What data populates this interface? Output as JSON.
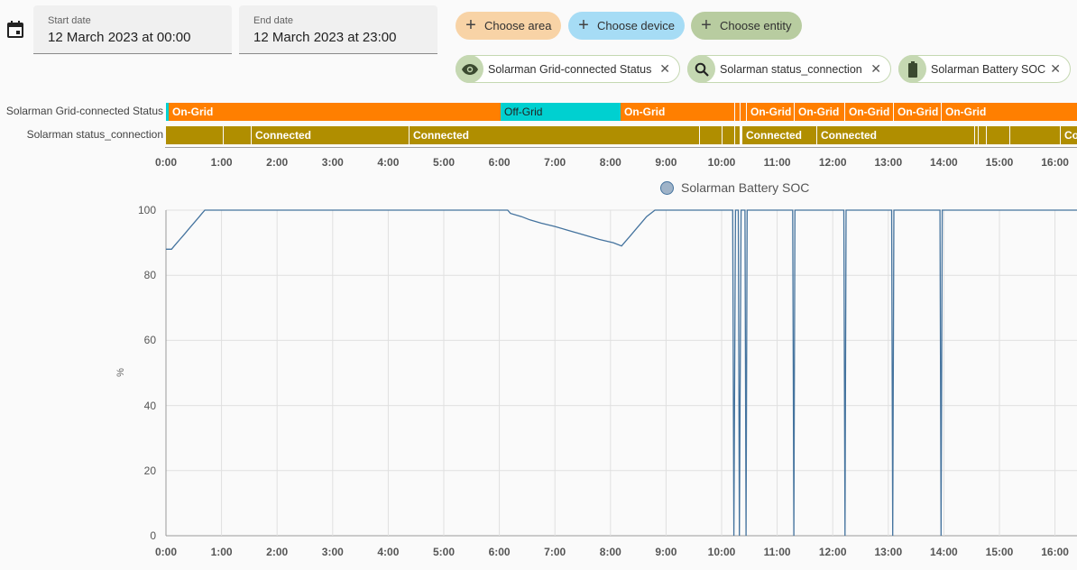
{
  "start_date": {
    "label": "Start date",
    "value": "12 March 2023 at 00:00"
  },
  "end_date": {
    "label": "End date",
    "value": "12 March 2023 at 23:00"
  },
  "pickers": {
    "area": "Choose area",
    "device": "Choose device",
    "entity": "Choose entity"
  },
  "selected": [
    {
      "label": "Solarman Grid-connected Status",
      "icon": "eye-icon"
    },
    {
      "label": "Solarman status_connection",
      "icon": "magnify-icon"
    },
    {
      "label": "Solarman Battery SOC",
      "icon": "battery-icon"
    }
  ],
  "timeline": {
    "rows": [
      {
        "label": "Solarman Grid-connected Status"
      },
      {
        "label": "Solarman status_connection"
      }
    ],
    "text": {
      "on_grid": "On-Grid",
      "off_grid": "Off-Grid",
      "connected": "Connected",
      "connected_cut": "Co"
    },
    "ticks": [
      "0:00",
      "1:00",
      "2:00",
      "3:00",
      "4:00",
      "5:00",
      "6:00",
      "7:00",
      "8:00",
      "9:00",
      "10:00",
      "11:00",
      "12:00",
      "13:00",
      "14:00",
      "15:00",
      "16:00"
    ]
  },
  "chart_data": {
    "type": "line",
    "title": "",
    "legend": {
      "label": "Solarman Battery SOC",
      "position": "top"
    },
    "ylabel": "%",
    "ylim": [
      0,
      100
    ],
    "yticks": [
      "0",
      "20",
      "40",
      "60",
      "80",
      "100"
    ],
    "xticks": [
      "0:00",
      "1:00",
      "2:00",
      "3:00",
      "4:00",
      "5:00",
      "6:00",
      "7:00",
      "8:00",
      "9:00",
      "10:00",
      "11:00",
      "12:00",
      "13:00",
      "14:00",
      "15:00",
      "16:00"
    ],
    "series": [
      {
        "name": "Solarman Battery SOC",
        "color": "#44739e",
        "points_hours_pct": [
          [
            0,
            88
          ],
          [
            0.1,
            88
          ],
          [
            0.15,
            89
          ],
          [
            0.2,
            90
          ],
          [
            0.25,
            91
          ],
          [
            0.3,
            92
          ],
          [
            0.35,
            93
          ],
          [
            0.4,
            94
          ],
          [
            0.45,
            95
          ],
          [
            0.5,
            96
          ],
          [
            0.55,
            97
          ],
          [
            0.6,
            98
          ],
          [
            0.65,
            99
          ],
          [
            0.7,
            100
          ],
          [
            6.15,
            100
          ],
          [
            6.2,
            99
          ],
          [
            6.4,
            98
          ],
          [
            6.55,
            97
          ],
          [
            6.75,
            96
          ],
          [
            7.0,
            95
          ],
          [
            7.2,
            94
          ],
          [
            7.4,
            93
          ],
          [
            7.6,
            92
          ],
          [
            7.8,
            91
          ],
          [
            8.05,
            90
          ],
          [
            8.2,
            89
          ],
          [
            8.25,
            90
          ],
          [
            8.35,
            92
          ],
          [
            8.45,
            94
          ],
          [
            8.55,
            96
          ],
          [
            8.65,
            98
          ],
          [
            8.8,
            100
          ],
          [
            10.2,
            100
          ],
          [
            10.22,
            0
          ],
          [
            10.25,
            100
          ],
          [
            10.3,
            100
          ],
          [
            10.32,
            0
          ],
          [
            10.35,
            100
          ],
          [
            10.42,
            100
          ],
          [
            10.44,
            0
          ],
          [
            10.46,
            100
          ],
          [
            11.28,
            100
          ],
          [
            11.3,
            0
          ],
          [
            11.32,
            100
          ],
          [
            12.2,
            100
          ],
          [
            12.22,
            0
          ],
          [
            12.24,
            100
          ],
          [
            13.06,
            100
          ],
          [
            13.08,
            0
          ],
          [
            13.1,
            100
          ],
          [
            13.93,
            100
          ],
          [
            13.95,
            0
          ],
          [
            13.97,
            100
          ],
          [
            16.4,
            100
          ]
        ]
      }
    ]
  },
  "colors": {
    "on_grid": "#ff7f00",
    "off_grid": "#00d0d0",
    "connected": "#b08e00",
    "line": "#44739e"
  }
}
